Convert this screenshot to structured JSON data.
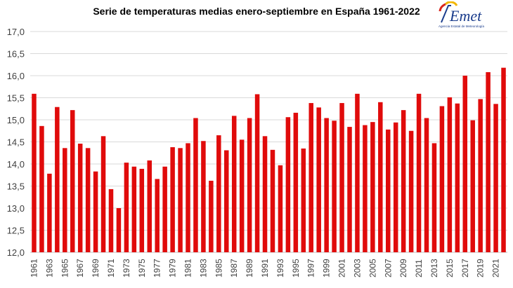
{
  "chart_data": {
    "type": "bar",
    "title": "Serie de temperaturas medias enero-septiembre en España 1961-2022",
    "xlabel": "",
    "ylabel": "",
    "ylim": [
      12.0,
      17.0
    ],
    "yticks": [
      "12,0",
      "12,5",
      "13,0",
      "13,5",
      "14,0",
      "14,5",
      "15,0",
      "15,5",
      "16,0",
      "16,5",
      "17,0"
    ],
    "grid": true,
    "bar_color": "#e00b0b",
    "categories": [
      "1961",
      "1962",
      "1963",
      "1964",
      "1965",
      "1966",
      "1967",
      "1968",
      "1969",
      "1970",
      "1971",
      "1972",
      "1973",
      "1974",
      "1975",
      "1976",
      "1977",
      "1978",
      "1979",
      "1980",
      "1981",
      "1982",
      "1983",
      "1984",
      "1985",
      "1986",
      "1987",
      "1988",
      "1989",
      "1990",
      "1991",
      "1992",
      "1993",
      "1994",
      "1995",
      "1996",
      "1997",
      "1998",
      "1999",
      "2000",
      "2001",
      "2002",
      "2003",
      "2004",
      "2005",
      "2006",
      "2007",
      "2008",
      "2009",
      "2010",
      "2011",
      "2012",
      "2013",
      "2014",
      "2015",
      "2016",
      "2017",
      "2018",
      "2019",
      "2020",
      "2021",
      "2022"
    ],
    "values": [
      15.59,
      14.86,
      13.78,
      15.29,
      14.36,
      15.22,
      14.46,
      14.36,
      13.83,
      14.63,
      13.43,
      13.0,
      14.03,
      13.94,
      13.89,
      14.08,
      13.66,
      13.94,
      14.38,
      14.36,
      14.47,
      15.04,
      14.52,
      13.62,
      14.65,
      14.31,
      15.09,
      14.55,
      15.04,
      15.58,
      14.63,
      14.32,
      13.97,
      15.06,
      15.16,
      14.35,
      15.38,
      15.28,
      15.04,
      14.98,
      15.38,
      14.84,
      15.59,
      14.88,
      14.95,
      15.4,
      14.78,
      14.94,
      15.22,
      14.75,
      15.59,
      15.04,
      14.47,
      15.31,
      15.51,
      15.37,
      16.0,
      14.99,
      15.47,
      16.08,
      15.36,
      16.18
    ]
  },
  "logo": {
    "name": "AEMet",
    "subtitle": "Agencia Estatal de Meteorología"
  }
}
